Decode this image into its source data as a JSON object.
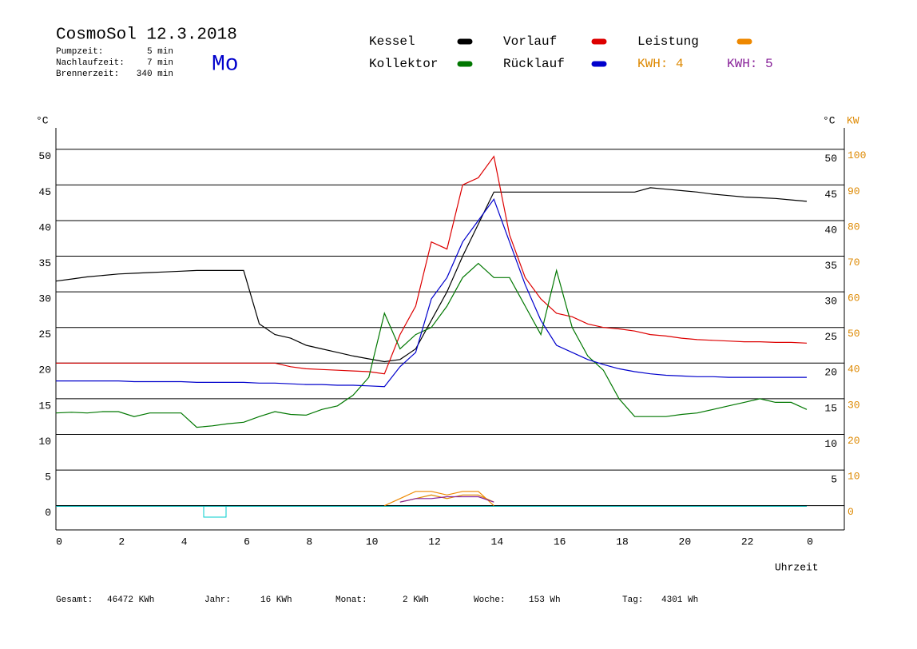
{
  "header": {
    "title": "CosmoSol 12.3.2018",
    "day": "Mo",
    "info": [
      {
        "label": "Pumpzeit:",
        "value": "5 min"
      },
      {
        "label": "Nachlaufzeit:",
        "value": "7 min"
      },
      {
        "label": "Brennerzeit:",
        "value": "340 min"
      }
    ]
  },
  "chart_data": {
    "type": "line",
    "xlabel": "Uhrzeit",
    "y_unit": "°C",
    "y2_unit": "KW",
    "x": [
      0,
      0.5,
      1,
      1.5,
      2,
      2.5,
      3,
      3.5,
      4,
      4.5,
      5,
      5.5,
      6,
      6.5,
      7,
      7.5,
      8,
      8.5,
      9,
      9.5,
      10,
      10.5,
      11,
      11.5,
      12,
      12.5,
      13,
      13.5,
      14,
      14.5,
      15,
      15.5,
      16,
      16.5,
      17,
      17.5,
      18,
      18.5,
      19,
      19.5,
      20,
      20.5,
      21,
      21.5,
      22,
      22.5,
      23,
      23.5,
      24
    ],
    "series": [
      {
        "name": "Kessel",
        "color": "#000000",
        "values": [
          31.5,
          31.8,
          32.1,
          32.3,
          32.5,
          32.6,
          32.7,
          32.8,
          32.9,
          33,
          33,
          33,
          33,
          25.5,
          24,
          23.5,
          22.5,
          22,
          21.5,
          21,
          20.6,
          20.2,
          20.5,
          22,
          26,
          30,
          35,
          39.5,
          44,
          44,
          44,
          44,
          44,
          44,
          44,
          44,
          44,
          44,
          44.6,
          44.4,
          44.2,
          44,
          43.7,
          43.5,
          43.3,
          43.2,
          43.1,
          42.9,
          42.7
        ]
      },
      {
        "name": "Vorlauf",
        "color": "#dd0000",
        "values": [
          20,
          20,
          20,
          20,
          20,
          20,
          20,
          20,
          20,
          20,
          20,
          20,
          20,
          20,
          20,
          19.5,
          19.2,
          19.1,
          19,
          18.9,
          18.8,
          18.5,
          24,
          28,
          37,
          36,
          45,
          46,
          49,
          38,
          32,
          29,
          27,
          26.5,
          25.5,
          25,
          24.8,
          24.5,
          24,
          23.8,
          23.5,
          23.3,
          23.2,
          23.1,
          23,
          23,
          22.9,
          22.9,
          22.8
        ]
      },
      {
        "name": "Leistung",
        "color": "#ee8800",
        "axis": "y2",
        "values": [
          1,
          null,
          null,
          null,
          null,
          null,
          null,
          null,
          null,
          null,
          null,
          null,
          null,
          null,
          null,
          null,
          null,
          null,
          null,
          null,
          null,
          0,
          2,
          4,
          4,
          3,
          4,
          4,
          0,
          null,
          null,
          null,
          null,
          null,
          null,
          null,
          null,
          null,
          null,
          null,
          null,
          null,
          null,
          null,
          null,
          null,
          null,
          null,
          null
        ]
      },
      {
        "name": "Kollektor",
        "color": "#007700",
        "values": [
          13,
          13.1,
          13,
          13.2,
          13.2,
          12.5,
          13,
          13,
          13,
          11,
          11.2,
          11.5,
          11.7,
          12.5,
          13.2,
          12.8,
          12.7,
          13.5,
          14,
          15.5,
          18,
          27,
          22,
          24,
          25,
          28,
          32,
          34,
          32,
          32,
          28,
          24,
          33,
          25,
          21,
          19,
          15,
          12.5,
          12.5,
          12.5,
          12.8,
          13,
          13.5,
          14,
          14.5,
          15,
          14.5,
          14.5,
          13.5
        ]
      },
      {
        "name": "Rücklauf",
        "color": "#0000cc",
        "values": [
          17.5,
          17.5,
          17.5,
          17.5,
          17.5,
          17.4,
          17.4,
          17.4,
          17.4,
          17.3,
          17.3,
          17.3,
          17.3,
          17.2,
          17.2,
          17.1,
          17,
          17,
          16.9,
          16.9,
          16.8,
          16.7,
          19.5,
          21.5,
          29,
          32,
          37,
          40,
          43,
          37,
          31,
          26,
          22.5,
          21.5,
          20.5,
          19.8,
          19.2,
          18.8,
          18.5,
          18.3,
          18.2,
          18.1,
          18.1,
          18,
          18,
          18,
          18,
          18,
          18
        ]
      },
      {
        "name": "KWH: 4",
        "color": "#dd8800",
        "axis": "y2",
        "values": [
          null,
          null,
          null,
          null,
          null,
          null,
          null,
          null,
          null,
          null,
          null,
          null,
          null,
          null,
          null,
          null,
          null,
          null,
          null,
          null,
          null,
          null,
          1,
          2,
          3,
          2,
          3,
          3,
          1,
          null,
          null,
          null,
          null,
          null,
          null,
          null,
          null,
          null,
          null,
          null,
          null,
          null,
          null,
          null,
          null,
          null,
          null,
          null,
          null
        ]
      },
      {
        "name": "KWH: 5",
        "color": "#882299",
        "axis": "y2",
        "values": [
          null,
          null,
          null,
          null,
          null,
          null,
          null,
          null,
          null,
          null,
          null,
          null,
          null,
          null,
          null,
          null,
          null,
          null,
          null,
          null,
          null,
          null,
          1,
          2,
          2,
          2.5,
          2.5,
          2.5,
          1,
          null,
          null,
          null,
          null,
          null,
          null,
          null,
          null,
          null,
          null,
          null,
          null,
          null,
          null,
          null,
          null,
          null,
          null,
          null,
          null
        ]
      }
    ],
    "xlim": [
      0,
      25.2
    ],
    "xticks": [
      0,
      2,
      4,
      6,
      8,
      10,
      12,
      14,
      16,
      18,
      20,
      22,
      {
        "value": 24,
        "label": "0"
      }
    ],
    "ylim": [
      -3.4,
      53
    ],
    "yticks": [
      0,
      5,
      10,
      15,
      20,
      25,
      30,
      35,
      40,
      45,
      50
    ],
    "yticks_right": [
      5,
      10,
      15,
      20,
      25,
      30,
      35,
      40,
      45,
      50
    ],
    "y2lim": [
      -6.8,
      106
    ],
    "y2ticks": [
      0,
      10,
      20,
      30,
      40,
      50,
      60,
      70,
      80,
      90,
      100
    ],
    "grid": true
  },
  "footer": [
    {
      "label": "Gesamt:",
      "value": "46472 KWh"
    },
    {
      "label": "Jahr:",
      "value": "16 KWh"
    },
    {
      "label": "Monat:",
      "value": "2 KWh"
    },
    {
      "label": "Woche:",
      "value": "153 Wh"
    },
    {
      "label": "Tag:",
      "value": "4301 Wh"
    }
  ]
}
